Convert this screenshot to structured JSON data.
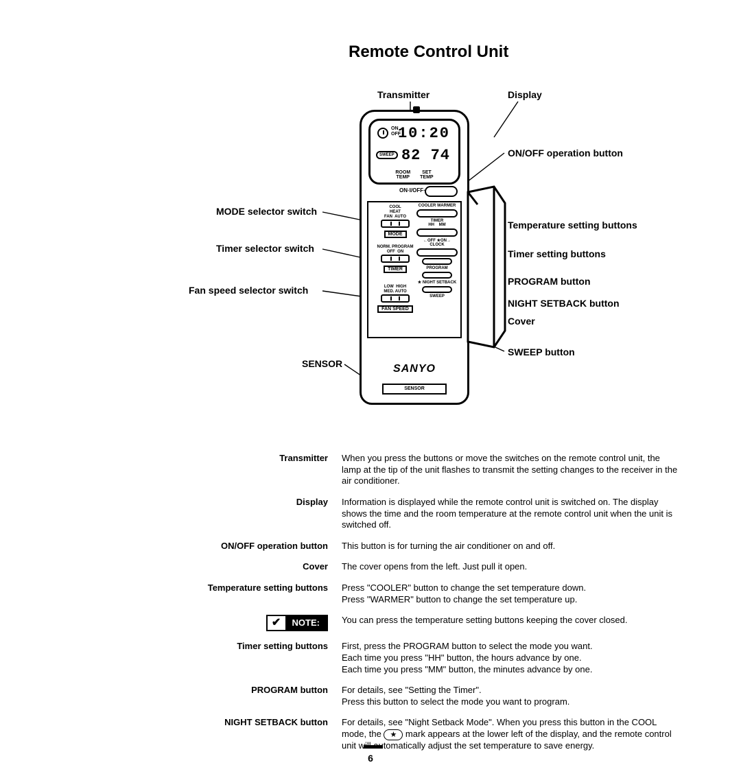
{
  "title": "Remote Control Unit",
  "page_number": "6",
  "diagram": {
    "left_labels": {
      "mode_selector": "MODE selector switch",
      "timer_selector": "Timer selector switch",
      "fan_speed_selector": "Fan speed selector switch",
      "sensor": "SENSOR"
    },
    "top_labels": {
      "transmitter": "Transmitter",
      "display": "Display"
    },
    "right_labels": {
      "onoff": "ON/OFF operation button",
      "temp_setting": "Temperature setting buttons",
      "timer_setting": "Timer setting buttons",
      "program": "PROGRAM button",
      "night_setback": "NIGHT SETBACK button",
      "cover": "Cover",
      "sweep": "SWEEP button"
    }
  },
  "remote": {
    "time": "10:20",
    "temps": "82 74",
    "onoff_small": "ON\nOFF",
    "sweep_badge": "SWEEP",
    "room_temp": "ROOM\nTEMP",
    "set_temp": "SET\nTEMP",
    "onoff_row": "ON·I/OFF·O",
    "brand": "SANYO",
    "sensor": "SENSOR",
    "mode": {
      "opts": "COOL\nHEAT\nFAN  AUTO",
      "caption": "MODE"
    },
    "timer": {
      "opts": "NORM. PROGRAM\nOFF  ON",
      "caption": "TIMER"
    },
    "fan": {
      "opts": "LOW  HIGH\nMED. AUTO",
      "caption": "FAN SPEED"
    },
    "right_groups": {
      "cooler_warmer": "COOLER  WARMER",
      "timer_hhmm": "TIMER\nHH    MM",
      "clock": "←OFF ★ON→\nCLOCK",
      "program": "PROGRAM",
      "night": "★ NIGHT SETBACK",
      "sweep": "SWEEP"
    }
  },
  "note_label": "NOTE:",
  "descriptions": [
    {
      "term": "Transmitter",
      "body": "When you press the buttons or move the switches on the remote control unit, the lamp at the tip of the unit flashes to transmit the setting changes to the receiver in the air conditioner."
    },
    {
      "term": "Display",
      "body": "Information is displayed while the remote control unit is switched on. The display shows the time and the room temperature at the remote control unit when the unit is switched off."
    },
    {
      "term": "ON/OFF operation button",
      "body": "This button is for turning the air conditioner on and off."
    },
    {
      "term": "Cover",
      "body": "The cover opens from the left. Just pull it open."
    },
    {
      "term": "Temperature setting buttons",
      "body": "Press \"COOLER\" button to change the set temperature down.\nPress \"WARMER\" button to change the set temperature up."
    },
    {
      "term": "__NOTE__",
      "body": "You can press the temperature setting buttons keeping the cover closed."
    },
    {
      "term": "Timer setting buttons",
      "body": "First, press the PROGRAM button to select the mode you want.\nEach time you press \"HH\" button, the hours advance by one.\nEach time you press \"MM\" button, the minutes advance by one."
    },
    {
      "term": "PROGRAM button",
      "body": "For details, see \"Setting the Timer\".\nPress this button to select the mode you want to program."
    },
    {
      "term": "NIGHT SETBACK button",
      "body": "For details, see \"Night Setback Mode\". When you press this button in the COOL mode, the ★ mark appears at the lower left of the display, and the remote control unit will automatically adjust the set temperature to save energy."
    }
  ]
}
